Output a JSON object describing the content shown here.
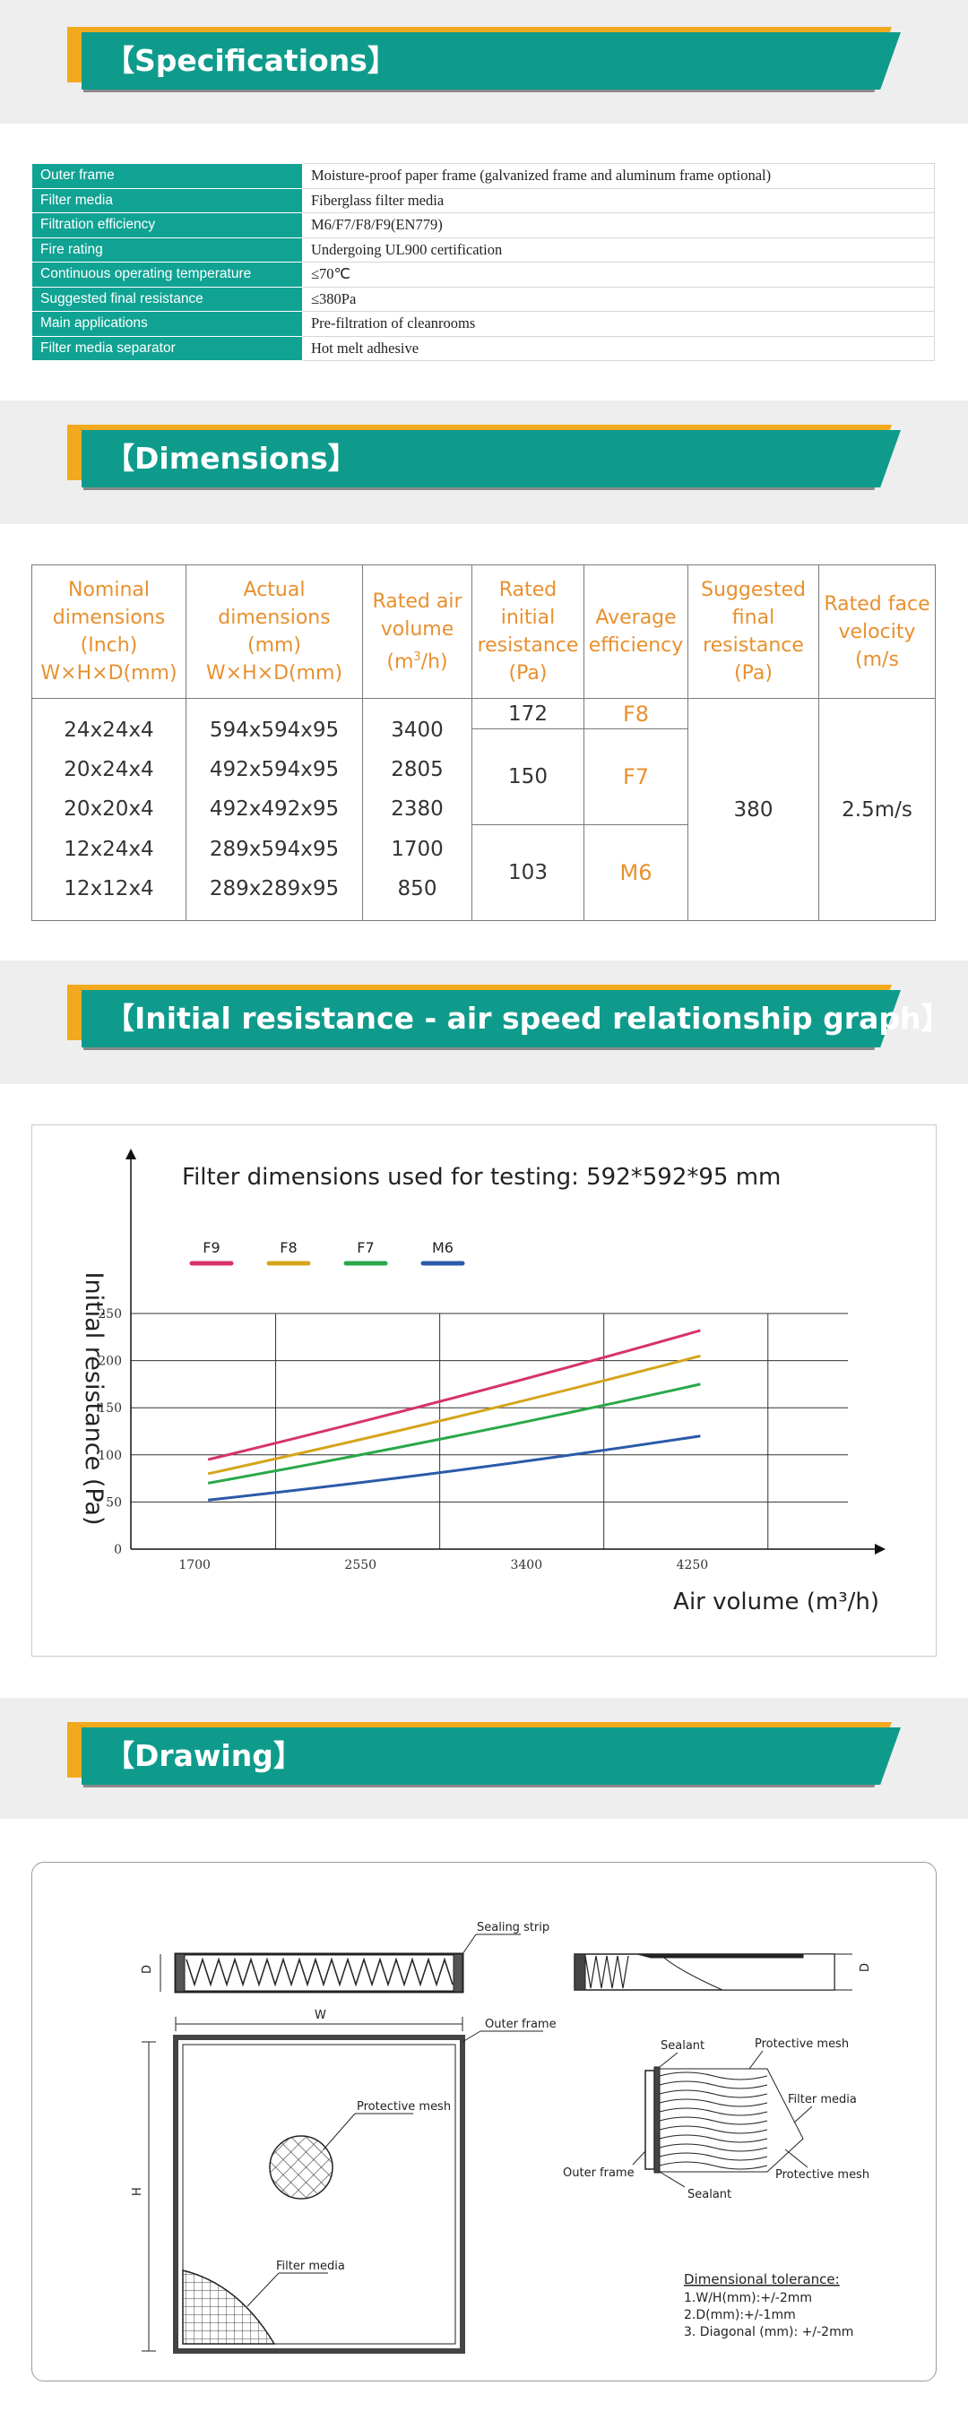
{
  "sections": {
    "specifications": "【Specifications】",
    "dimensions": "【Dimensions】",
    "graph": "【Initial resistance - air speed relationship graph】",
    "drawing": "【Drawing】"
  },
  "colors": {
    "teal": "#0f9b8c",
    "gold": "#f2a91d",
    "orange": "#e8902e"
  },
  "specs": [
    {
      "key": "Outer frame",
      "value": "Moisture-proof paper frame (galvanized frame and aluminum frame optional)"
    },
    {
      "key": "Filter media",
      "value": "Fiberglass filter media"
    },
    {
      "key": "Filtration efficiency",
      "value": "M6/F7/F8/F9(EN779)"
    },
    {
      "key": "Fire rating",
      "value": "Undergoing UL900 certification"
    },
    {
      "key": "Continuous operating temperature",
      "value": "≤70℃"
    },
    {
      "key": "Suggested final resistance",
      "value": "≤380Pa"
    },
    {
      "key": "Main applications",
      "value": "Pre-filtration of cleanrooms"
    },
    {
      "key": "Filter media separator",
      "value": "Hot melt adhesive"
    }
  ],
  "dimensions": {
    "headers": {
      "nominal": "Nominal dimensions (Inch) W×H×D(mm)",
      "actual": "Actual dimensions (mm) W×H×D(mm)",
      "airflow": "Rated air volume (m³/h)",
      "resistance": "Rated initial resistance (Pa)",
      "efficiency": "Average efficiency",
      "final": "Suggested final resistance (Pa)",
      "velocity": "Rated face velocity (m/s"
    },
    "nominal": [
      "24x24x4",
      "20x24x4",
      "20x20x4",
      "12x24x4",
      "12x12x4"
    ],
    "actual": [
      "594x594x95",
      "492x594x95",
      "492x492x95",
      "289x594x95",
      "289x289x95"
    ],
    "airflow": [
      "3400",
      "2805",
      "2380",
      "1700",
      "850"
    ],
    "resistance": [
      "172",
      "150",
      "103"
    ],
    "efficiency": [
      "F8",
      "F7",
      "M6"
    ],
    "final_resistance": "380",
    "face_velocity": "2.5m/s"
  },
  "chart_data": {
    "type": "line",
    "title": "Filter dimensions used for testing: 592*592*95 mm",
    "xlabel": "Air volume (m³/h)",
    "ylabel": "Initial resistance (Pa)",
    "x": [
      1700,
      4250
    ],
    "x_ticks": [
      "1700",
      "2550",
      "3400",
      "4250"
    ],
    "y_ticks": [
      "0",
      "50",
      "100",
      "150",
      "200",
      "250"
    ],
    "xlim": [
      1300,
      5200
    ],
    "ylim": [
      0,
      250
    ],
    "series": [
      {
        "name": "F9",
        "color": "#d6336c",
        "values": [
          95,
          232
        ]
      },
      {
        "name": "F8",
        "color": "#d4a51c",
        "values": [
          80,
          205
        ]
      },
      {
        "name": "F7",
        "color": "#2aa84a",
        "values": [
          70,
          175
        ]
      },
      {
        "name": "M6",
        "color": "#2a5aa8",
        "values": [
          52,
          120
        ]
      }
    ]
  },
  "drawing": {
    "sealing_strip": "Sealing strip",
    "outer_frame": "Outer frame",
    "protective_mesh": "Protective mesh",
    "filter_media": "Filter media",
    "sealant": "Sealant",
    "dim_w": "W",
    "dim_h": "H",
    "dim_d": "D",
    "tolerance_title": "Dimensional tolerance:",
    "tolerances": [
      "1.W/H(mm):+/-2mm",
      "2.D(mm):+/-1mm",
      "3. Diagonal (mm): +/-2mm"
    ]
  }
}
